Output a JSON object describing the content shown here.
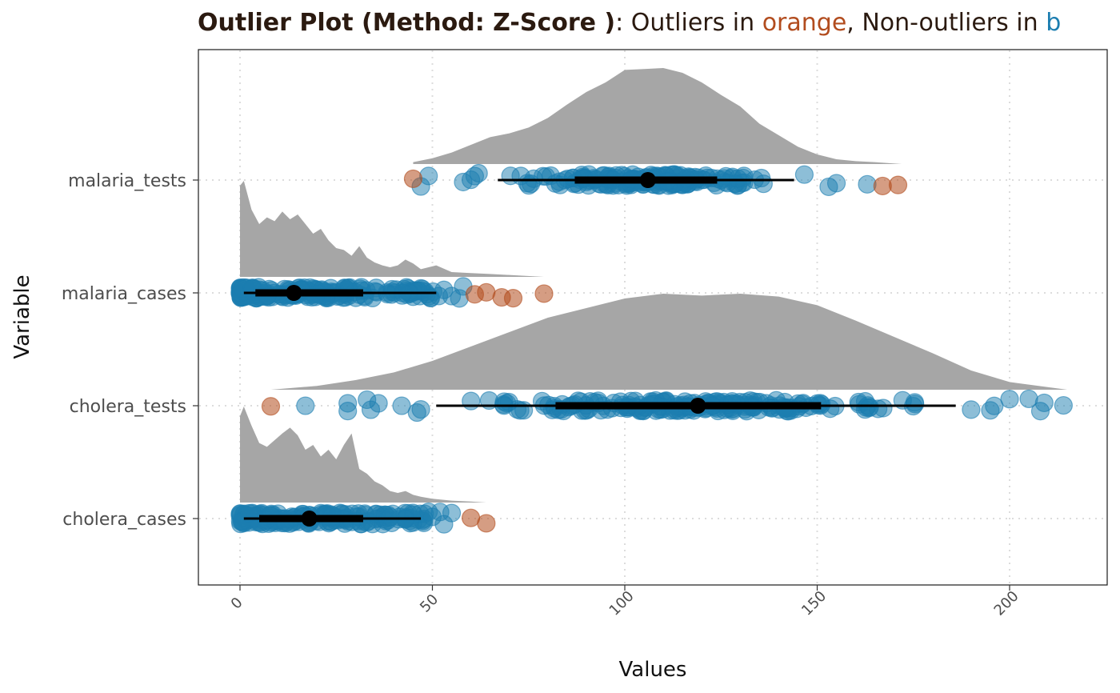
{
  "title": {
    "bold": "Outlier Plot (Method: Z-Score )",
    "colon": ":",
    "p1": " Outliers in ",
    "word_outlier": "orange",
    "p2": ", Non-outliers in ",
    "word_nonoutlier": "b"
  },
  "colors": {
    "outlier": "#B24C1E",
    "nonoutlier": "#1B7DB0",
    "density": "#a6a6a6",
    "text_dark": "#2b1a10",
    "axis_text": "#4d4d4d",
    "grid": "#dcdcdc"
  },
  "chart_data": {
    "type": "raincloud",
    "xlabel": "Values",
    "ylabel": "Variable",
    "xlim": [
      -11,
      226
    ],
    "xticks": [
      0,
      50,
      100,
      150,
      200
    ],
    "xtick_labels": [
      "0",
      "50",
      "100",
      "150",
      "200"
    ],
    "grid": true,
    "categories": [
      "malaria_tests",
      "malaria_cases",
      "cholera_tests",
      "cholera_cases"
    ],
    "series": [
      {
        "name": "malaria_tests",
        "range": [
          45,
          172
        ],
        "dense_range": [
          60,
          150
        ],
        "n_points": 170,
        "median": 106,
        "iqr": [
          87,
          124
        ],
        "whiskers": [
          67,
          144
        ],
        "outliers": [
          45,
          167,
          171
        ],
        "nonoutlier_extras": [
          47,
          49,
          58,
          60,
          61,
          62,
          153,
          155,
          163
        ],
        "density_x": [
          45,
          50,
          55,
          60,
          65,
          70,
          75,
          80,
          85,
          90,
          95,
          100,
          105,
          110,
          115,
          120,
          125,
          130,
          135,
          140,
          145,
          150,
          155,
          160,
          165,
          172
        ],
        "density_y": [
          0.02,
          0.06,
          0.12,
          0.2,
          0.28,
          0.32,
          0.38,
          0.48,
          0.62,
          0.75,
          0.85,
          0.98,
          0.99,
          1.0,
          0.95,
          0.85,
          0.72,
          0.6,
          0.42,
          0.3,
          0.18,
          0.1,
          0.05,
          0.03,
          0.02,
          0.0
        ]
      },
      {
        "name": "malaria_cases",
        "range": [
          0,
          79
        ],
        "dense_range": [
          0,
          52
        ],
        "n_points": 200,
        "median": 14,
        "iqr": [
          4,
          32
        ],
        "whiskers": [
          1,
          51
        ],
        "outliers": [
          61,
          64,
          68,
          71,
          79
        ],
        "nonoutlier_extras": [
          53,
          55,
          57,
          58
        ],
        "density_x": [
          0,
          1,
          3,
          5,
          7,
          9,
          11,
          13,
          15,
          17,
          19,
          21,
          23,
          25,
          27,
          29,
          31,
          33,
          35,
          37,
          39,
          41,
          43,
          45,
          47,
          49,
          51,
          55,
          60,
          65,
          70,
          79
        ],
        "density_y": [
          0.95,
          1.0,
          0.7,
          0.55,
          0.62,
          0.58,
          0.68,
          0.6,
          0.65,
          0.55,
          0.45,
          0.5,
          0.38,
          0.3,
          0.28,
          0.22,
          0.32,
          0.2,
          0.15,
          0.12,
          0.1,
          0.12,
          0.18,
          0.14,
          0.08,
          0.1,
          0.12,
          0.05,
          0.04,
          0.03,
          0.02,
          0.0
        ]
      },
      {
        "name": "cholera_tests",
        "range": [
          8,
          215
        ],
        "dense_range": [
          50,
          190
        ],
        "n_points": 190,
        "median": 119,
        "iqr": [
          82,
          151
        ],
        "whiskers": [
          51,
          186
        ],
        "outliers": [
          8
        ],
        "nonoutlier_extras": [
          17,
          28,
          28,
          33,
          34,
          36,
          42,
          46,
          47,
          190,
          195,
          196,
          200,
          205,
          208,
          209,
          214
        ],
        "density_x": [
          8,
          20,
          30,
          40,
          50,
          60,
          70,
          80,
          90,
          100,
          110,
          120,
          130,
          140,
          150,
          160,
          170,
          180,
          190,
          200,
          215
        ],
        "density_y": [
          0.0,
          0.04,
          0.1,
          0.18,
          0.3,
          0.45,
          0.6,
          0.75,
          0.85,
          0.95,
          1.0,
          0.98,
          1.0,
          0.97,
          0.88,
          0.72,
          0.55,
          0.38,
          0.2,
          0.08,
          0.0
        ]
      },
      {
        "name": "cholera_cases",
        "range": [
          0,
          64
        ],
        "dense_range": [
          0,
          48
        ],
        "n_points": 180,
        "median": 18,
        "iqr": [
          5,
          32
        ],
        "whiskers": [
          1,
          47
        ],
        "outliers": [
          60,
          64
        ],
        "nonoutlier_extras": [
          49,
          50,
          52,
          53,
          55
        ],
        "density_x": [
          0,
          1,
          3,
          5,
          7,
          9,
          11,
          13,
          15,
          17,
          19,
          21,
          23,
          25,
          27,
          29,
          31,
          33,
          35,
          37,
          39,
          41,
          43,
          45,
          47,
          50,
          55,
          60,
          64
        ],
        "density_y": [
          0.9,
          1.0,
          0.8,
          0.62,
          0.58,
          0.65,
          0.72,
          0.78,
          0.7,
          0.55,
          0.6,
          0.48,
          0.55,
          0.45,
          0.6,
          0.72,
          0.35,
          0.3,
          0.22,
          0.18,
          0.12,
          0.1,
          0.12,
          0.08,
          0.06,
          0.04,
          0.02,
          0.01,
          0.0
        ]
      }
    ]
  }
}
